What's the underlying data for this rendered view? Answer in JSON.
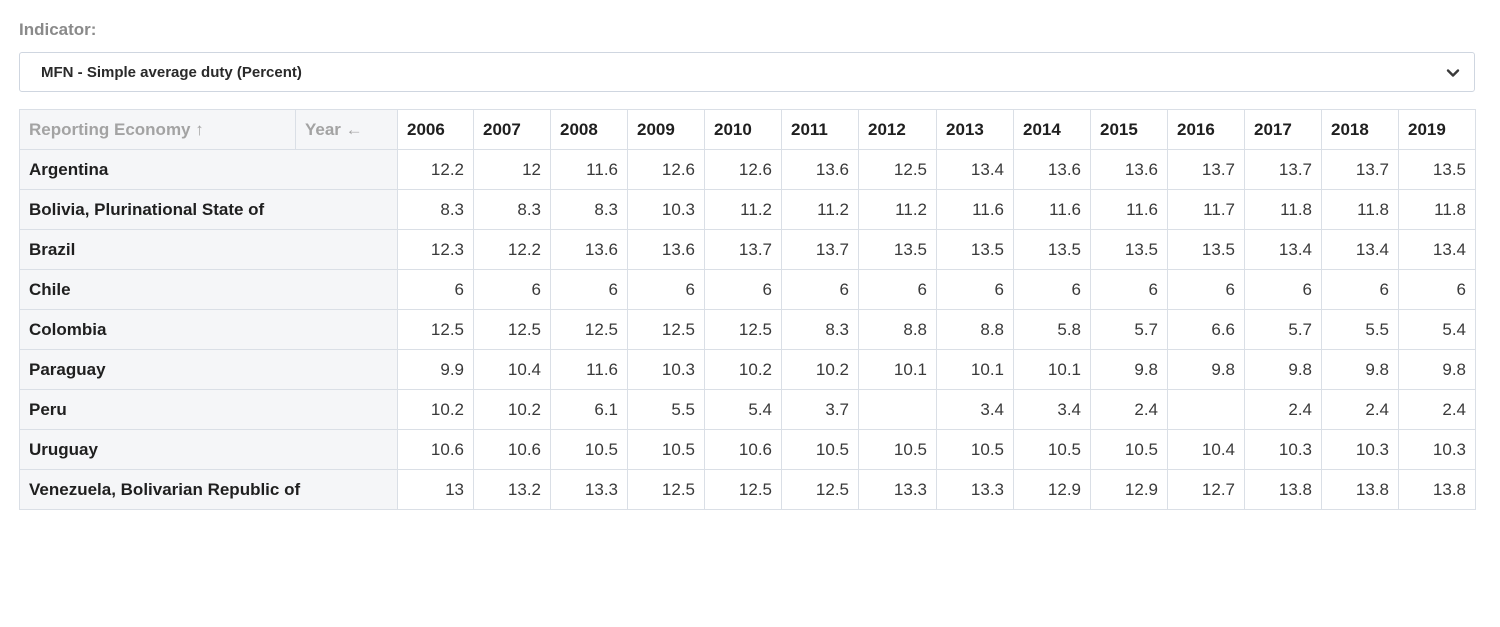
{
  "indicator": {
    "label": "Indicator:",
    "selected": "MFN - Simple average duty (Percent)"
  },
  "table": {
    "header": {
      "economy": "Reporting Economy ↑",
      "year": "Year ←"
    },
    "years": [
      "2006",
      "2007",
      "2008",
      "2009",
      "2010",
      "2011",
      "2012",
      "2013",
      "2014",
      "2015",
      "2016",
      "2017",
      "2018",
      "2019"
    ],
    "rows": [
      {
        "country": "Argentina",
        "values": [
          "12.2",
          "12",
          "11.6",
          "12.6",
          "12.6",
          "13.6",
          "12.5",
          "13.4",
          "13.6",
          "13.6",
          "13.7",
          "13.7",
          "13.7",
          "13.5"
        ]
      },
      {
        "country": "Bolivia, Plurinational State of",
        "values": [
          "8.3",
          "8.3",
          "8.3",
          "10.3",
          "11.2",
          "11.2",
          "11.2",
          "11.6",
          "11.6",
          "11.6",
          "11.7",
          "11.8",
          "11.8",
          "11.8"
        ]
      },
      {
        "country": "Brazil",
        "values": [
          "12.3",
          "12.2",
          "13.6",
          "13.6",
          "13.7",
          "13.7",
          "13.5",
          "13.5",
          "13.5",
          "13.5",
          "13.5",
          "13.4",
          "13.4",
          "13.4"
        ]
      },
      {
        "country": "Chile",
        "values": [
          "6",
          "6",
          "6",
          "6",
          "6",
          "6",
          "6",
          "6",
          "6",
          "6",
          "6",
          "6",
          "6",
          "6"
        ]
      },
      {
        "country": "Colombia",
        "values": [
          "12.5",
          "12.5",
          "12.5",
          "12.5",
          "12.5",
          "8.3",
          "8.8",
          "8.8",
          "5.8",
          "5.7",
          "6.6",
          "5.7",
          "5.5",
          "5.4"
        ]
      },
      {
        "country": "Paraguay",
        "values": [
          "9.9",
          "10.4",
          "11.6",
          "10.3",
          "10.2",
          "10.2",
          "10.1",
          "10.1",
          "10.1",
          "9.8",
          "9.8",
          "9.8",
          "9.8",
          "9.8"
        ]
      },
      {
        "country": "Peru",
        "values": [
          "10.2",
          "10.2",
          "6.1",
          "5.5",
          "5.4",
          "3.7",
          "",
          "3.4",
          "3.4",
          "2.4",
          "",
          "2.4",
          "2.4",
          "2.4"
        ]
      },
      {
        "country": "Uruguay",
        "values": [
          "10.6",
          "10.6",
          "10.5",
          "10.5",
          "10.6",
          "10.5",
          "10.5",
          "10.5",
          "10.5",
          "10.5",
          "10.4",
          "10.3",
          "10.3",
          "10.3"
        ]
      },
      {
        "country": "Venezuela, Bolivarian Republic of",
        "values": [
          "13",
          "13.2",
          "13.3",
          "12.5",
          "12.5",
          "12.5",
          "13.3",
          "13.3",
          "12.9",
          "12.9",
          "12.7",
          "13.8",
          "13.8",
          "13.8"
        ]
      }
    ]
  },
  "icons": {
    "dropdown": "chevron-down-icon"
  }
}
